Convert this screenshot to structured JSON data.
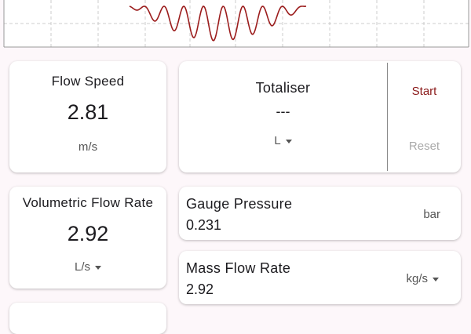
{
  "flow_speed": {
    "label": "Flow Speed",
    "value": 2.81,
    "unit": "m/s"
  },
  "totaliser": {
    "label": "Totaliser",
    "value": "---",
    "unit": "L",
    "start": "Start",
    "reset": "Reset"
  },
  "volumetric_flow_rate": {
    "label": "Volumetric Flow Rate",
    "value": 2.92,
    "unit": "L/s"
  },
  "gauge_pressure": {
    "label": "Gauge Pressure",
    "value": 0.231,
    "unit": "bar"
  },
  "mass_flow_rate": {
    "label": "Mass Flow Rate",
    "value": 2.92,
    "unit": "kg/s"
  }
}
